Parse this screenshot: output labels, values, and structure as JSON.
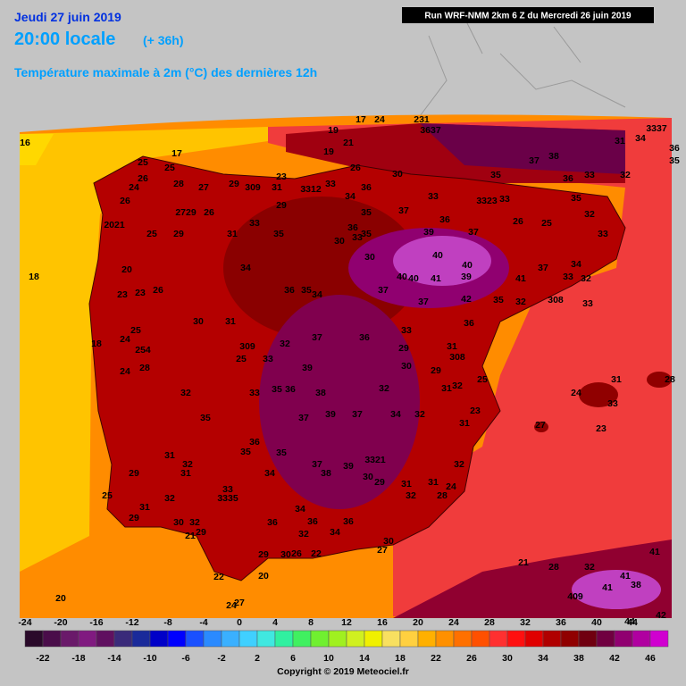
{
  "header": {
    "date": "Jeudi 27 juin 2019",
    "time": "20:00 locale",
    "offset": "(+ 36h)",
    "title": "Température maximale à 2m (°C) des dernières 12h",
    "run": "Run WRF-NMM 2km 6 Z du Mercredi 26 juin 2019"
  },
  "legend": {
    "upper_labels": [
      -24,
      -20,
      -16,
      -12,
      -8,
      -4,
      0,
      4,
      8,
      12,
      16,
      20,
      24,
      28,
      32,
      36,
      40,
      44
    ],
    "lower_labels": [
      -22,
      -18,
      -14,
      -10,
      -6,
      -2,
      2,
      6,
      10,
      14,
      18,
      22,
      26,
      30,
      34,
      38,
      42,
      46
    ],
    "colors": [
      "#2a0a2a",
      "#4a0d4a",
      "#6a1a6a",
      "#801a80",
      "#601060",
      "#3a2a7a",
      "#1a2a9a",
      "#0000c8",
      "#0000ff",
      "#1a50ff",
      "#2a8aff",
      "#3ab0ff",
      "#40d0ff",
      "#40e8e0",
      "#30f0a0",
      "#40f060",
      "#70f030",
      "#a0f020",
      "#d0f020",
      "#f0f000",
      "#f8e060",
      "#ffd040",
      "#ffb000",
      "#ff9000",
      "#ff7000",
      "#ff5000",
      "#ff3030",
      "#ff1010",
      "#e00000",
      "#b00000",
      "#900000",
      "#700010",
      "#700040",
      "#900070",
      "#b000a0",
      "#d000d0"
    ]
  },
  "map": {
    "labels": [
      "17",
      "24",
      "231",
      "3637",
      "16",
      "19",
      "21",
      "19",
      "25",
      "17",
      "25",
      "26",
      "26",
      "30",
      "35",
      "37",
      "38",
      "33",
      "32",
      "31",
      "34",
      "3337",
      "36",
      "35",
      "24",
      "28",
      "27",
      "29",
      "309",
      "31",
      "23",
      "3312",
      "33",
      "34",
      "36",
      "33",
      "3323",
      "33",
      "36",
      "35",
      "29",
      "26",
      "2729",
      "26",
      "2021",
      "25",
      "29",
      "33",
      "35",
      "37",
      "36",
      "37",
      "26",
      "25",
      "32",
      "33",
      "31",
      "35",
      "36",
      "35",
      "30",
      "33",
      "39",
      "40",
      "30",
      "40",
      "40",
      "39",
      "41",
      "40",
      "34",
      "34",
      "20",
      "18",
      "23",
      "23",
      "26",
      "30",
      "31",
      "36",
      "35",
      "34",
      "37",
      "37",
      "42",
      "35",
      "32",
      "37",
      "33",
      "32",
      "41",
      "308",
      "33",
      "18",
      "24",
      "25",
      "254",
      "24",
      "28",
      "309",
      "32",
      "37",
      "36",
      "33",
      "29",
      "31",
      "308",
      "36",
      "25",
      "33",
      "39",
      "30",
      "29",
      "25",
      "32",
      "33",
      "35",
      "36",
      "38",
      "32",
      "31",
      "32",
      "24",
      "33",
      "31",
      "28",
      "35",
      "37",
      "39",
      "37",
      "34",
      "32",
      "23",
      "31",
      "27",
      "23",
      "31",
      "32",
      "36",
      "35",
      "35",
      "37",
      "38",
      "39",
      "3321",
      "30",
      "29",
      "31",
      "31",
      "24",
      "32",
      "32",
      "28",
      "31",
      "29",
      "34",
      "25",
      "32",
      "33",
      "3335",
      "31",
      "29",
      "30",
      "32",
      "29",
      "21",
      "36",
      "34",
      "36",
      "36",
      "32",
      "34",
      "30",
      "27",
      "29",
      "30",
      "26",
      "22",
      "21",
      "28",
      "32",
      "41",
      "41",
      "38",
      "41",
      "42",
      "44",
      "22",
      "20",
      "27",
      "24",
      "20",
      "409"
    ]
  },
  "footer": {
    "copyright": "Copyright © 2019 Meteociel.fr"
  }
}
